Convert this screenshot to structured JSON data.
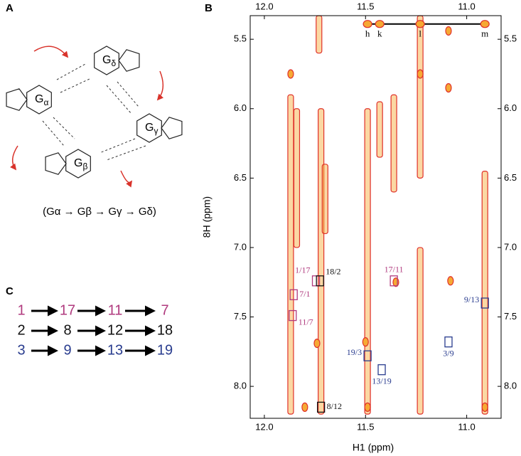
{
  "panel_a": {
    "label": "A",
    "quartet": [
      {
        "base": "G",
        "sub": "δ"
      },
      {
        "base": "G",
        "sub": "α"
      },
      {
        "base": "G",
        "sub": "γ"
      },
      {
        "base": "G",
        "sub": "β"
      }
    ],
    "caption": "(Gα → Gβ → Gγ → Gδ)"
  },
  "panel_c": {
    "label": "C",
    "rows": [
      {
        "color": "#b03a7e",
        "items": [
          "1",
          "17",
          "11",
          "7"
        ]
      },
      {
        "color": "#111111",
        "items": [
          "2",
          "8",
          "12",
          "18"
        ]
      },
      {
        "color": "#2a3d8f",
        "items": [
          "3",
          "9",
          "13",
          "19"
        ]
      }
    ]
  },
  "chart_data": {
    "type": "contour",
    "panel_label": "B",
    "xlabel": "H1 (ppm)",
    "ylabel": "8H (ppm)",
    "xlim": [
      12.07,
      10.83
    ],
    "ylim": [
      5.33,
      8.23
    ],
    "xticks": [
      {
        "value": 12,
        "label": "12.0"
      },
      11.5,
      {
        "value": 11,
        "label": "11.0"
      }
    ],
    "yticks": [
      5.5,
      {
        "value": 6,
        "label": "6.0"
      },
      6.5,
      {
        "value": 7,
        "label": "7.0"
      },
      7.5,
      {
        "value": 8,
        "label": "8.0"
      }
    ],
    "contour_color": "#e0302a",
    "fill_color": "#f6a934",
    "ridges": [
      {
        "x": 11.87,
        "y": [
          5.9,
          8.2
        ]
      },
      {
        "x": 11.84,
        "y": [
          6.0,
          7.0
        ]
      },
      {
        "x": 11.73,
        "y": [
          5.33,
          5.6
        ]
      },
      {
        "x": 11.72,
        "y": [
          6.0,
          8.2
        ]
      },
      {
        "x": 11.7,
        "y": [
          6.4,
          6.9
        ]
      },
      {
        "x": 11.49,
        "y": [
          6.0,
          8.2
        ]
      },
      {
        "x": 11.43,
        "y": [
          5.95,
          6.35
        ]
      },
      {
        "x": 11.36,
        "y": [
          5.9,
          6.6
        ]
      },
      {
        "x": 11.23,
        "y": [
          5.33,
          6.5
        ]
      },
      {
        "x": 11.23,
        "y": [
          7.0,
          8.2
        ]
      },
      {
        "x": 10.91,
        "y": [
          6.45,
          8.2
        ]
      }
    ],
    "peaks": [
      {
        "x": 11.87,
        "y": 5.75
      },
      {
        "x": 11.5,
        "y": 7.68
      },
      {
        "x": 11.49,
        "y": 8.15
      },
      {
        "x": 11.23,
        "y": 5.75
      },
      {
        "x": 11.09,
        "y": 5.85
      },
      {
        "x": 11.08,
        "y": 7.24
      },
      {
        "x": 11.35,
        "y": 7.25
      },
      {
        "x": 11.74,
        "y": 7.69
      },
      {
        "x": 10.91,
        "y": 8.15
      },
      {
        "x": 11.8,
        "y": 8.15
      },
      {
        "x": 11.09,
        "y": 5.44
      }
    ],
    "diagonal": {
      "y": 5.39,
      "points": [
        {
          "label": "h",
          "x": 11.49
        },
        {
          "label": "k",
          "x": 11.43
        },
        {
          "label": "l",
          "x": 11.23
        },
        {
          "label": "m",
          "x": 10.91
        }
      ]
    },
    "annotations": [
      {
        "text": "1/17",
        "x": 11.745,
        "y": 7.24,
        "color": "#b03a7e",
        "side": "above-left"
      },
      {
        "text": "18/2",
        "x": 11.725,
        "y": 7.24,
        "color": "#111111",
        "side": "above-right"
      },
      {
        "text": "7/1",
        "x": 11.855,
        "y": 7.34,
        "color": "#b03a7e",
        "side": "right"
      },
      {
        "text": "11/7",
        "x": 11.86,
        "y": 7.49,
        "color": "#b03a7e",
        "side": "below-right"
      },
      {
        "text": "17/11",
        "x": 11.36,
        "y": 7.24,
        "color": "#b03a7e",
        "side": "above"
      },
      {
        "text": "9/13",
        "x": 10.91,
        "y": 7.4,
        "color": "#2a3d8f",
        "side": "left"
      },
      {
        "text": "19/3",
        "x": 11.49,
        "y": 7.78,
        "color": "#2a3d8f",
        "side": "left"
      },
      {
        "text": "13/19",
        "x": 11.42,
        "y": 7.88,
        "color": "#2a3d8f",
        "side": "below"
      },
      {
        "text": "3/9",
        "x": 11.09,
        "y": 7.68,
        "color": "#2a3d8f",
        "side": "below"
      },
      {
        "text": "8/12",
        "x": 11.72,
        "y": 8.15,
        "color": "#111111",
        "side": "right"
      }
    ]
  }
}
